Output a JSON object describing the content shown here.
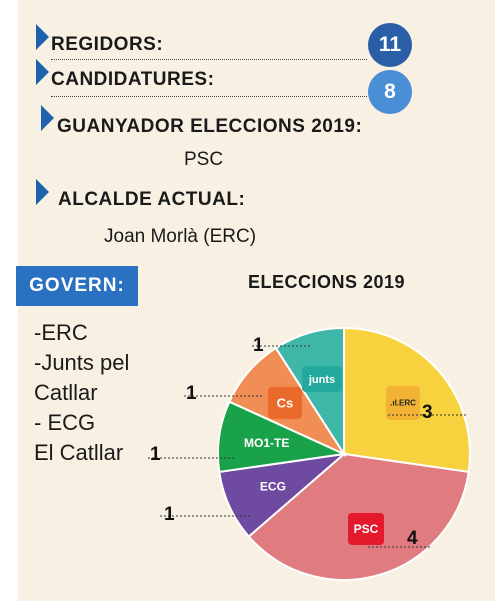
{
  "header": {
    "regidors_label": "REGIDORS:",
    "regidors_value": "11",
    "candidatures_label": "CANDIDATURES:",
    "candidatures_value": "8",
    "guanyador_label": "GUANYADOR ELECCIONS 2019:",
    "guanyador_value": "PSC",
    "alcalde_label": "ALCALDE ACTUAL:",
    "alcalde_value": "Joan Morlà (ERC)"
  },
  "govern": {
    "label": "GOVERN:",
    "lines": [
      "-ERC",
      "-Junts pel",
      "Catllar",
      "- ECG",
      "El Catllar"
    ]
  },
  "colors": {
    "accent_blue": "#2a72c1",
    "circle_blue": "#2a6bb4",
    "circle_blue_light": "#4a90d6"
  },
  "chart_data": {
    "type": "pie",
    "title": "ELECCIONS 2019",
    "series": [
      {
        "name": "ERC",
        "value": 3,
        "color": "#f7d23e",
        "logo": "ERC"
      },
      {
        "name": "PSC",
        "value": 4,
        "color": "#e07b80",
        "logo": "PSC"
      },
      {
        "name": "ECG",
        "value": 1,
        "color": "#6e4aa0",
        "logo": "ECG"
      },
      {
        "name": "MO1-TE",
        "value": 1,
        "color": "#1aa24a",
        "logo": "MO1-TE"
      },
      {
        "name": "Cs",
        "value": 1,
        "color": "#f08e55",
        "logo": "Cs"
      },
      {
        "name": "Junts",
        "value": 1,
        "color": "#3fb7a8",
        "logo": "junts"
      }
    ]
  }
}
